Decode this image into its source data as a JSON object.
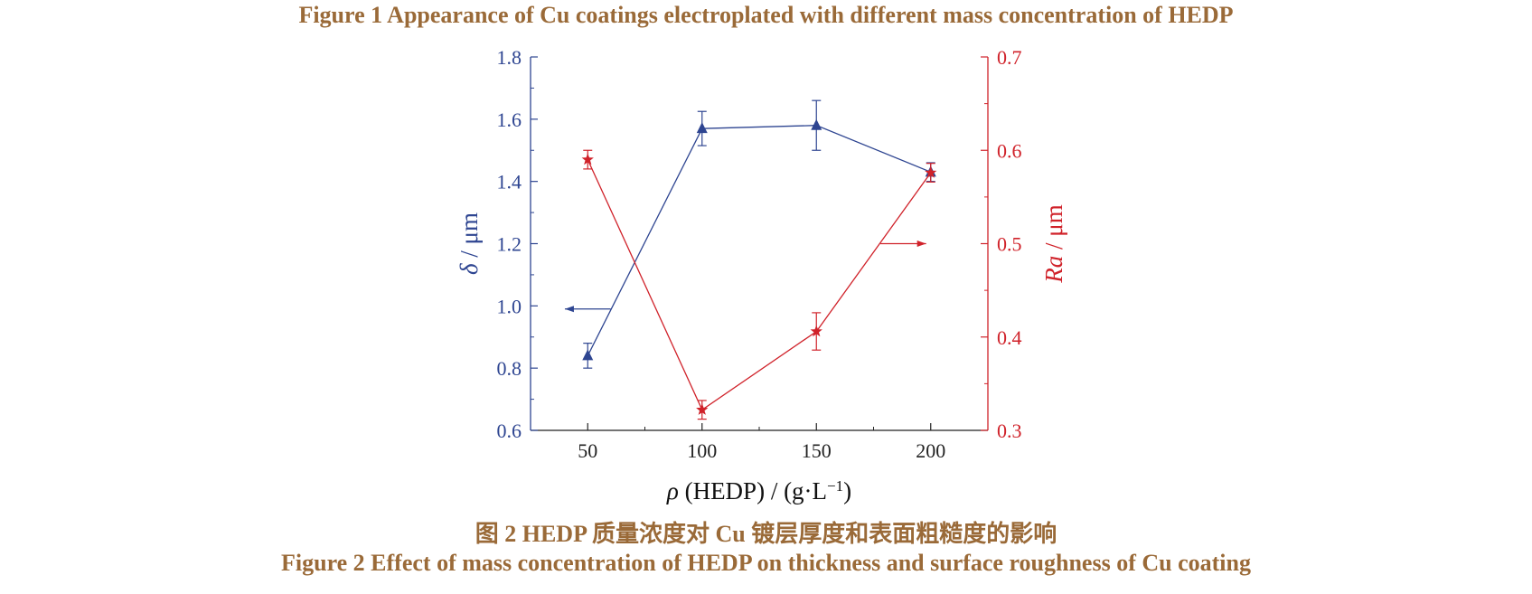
{
  "captions": {
    "fig1": "Figure 1    Appearance of Cu coatings electroplated with different mass concentration of HEDP",
    "cn": "图 2    HEDP 质量浓度对 Cu 镀层厚度和表面粗糙度的影响",
    "fig2": "Figure 2    Effect of mass concentration of HEDP on thickness and surface roughness of Cu coating"
  },
  "colors": {
    "left": "#2e4591",
    "right": "#d0222a",
    "axis": "#222222"
  },
  "chart_data": {
    "type": "line",
    "x": [
      50,
      100,
      150,
      200
    ],
    "xticks": [
      50,
      100,
      150,
      200
    ],
    "xlim": [
      25,
      225
    ],
    "xlabel": {
      "symbol": "ρ",
      "text": " (HEDP) / (g·L",
      "sup": "−1",
      "close": ")"
    },
    "y_left": {
      "label_symbol": "δ",
      "label_rest": " / μm",
      "lim": [
        0.6,
        1.8
      ],
      "ticks": [
        "0.6",
        "0.8",
        "1.0",
        "1.2",
        "1.4",
        "1.6",
        "1.8"
      ]
    },
    "y_right": {
      "label_symbol": "Ra",
      "label_rest": " / μm",
      "lim": [
        0.3,
        0.7
      ],
      "ticks": [
        "0.3",
        "0.4",
        "0.5",
        "0.6",
        "0.7"
      ]
    },
    "series": [
      {
        "axis": "left",
        "marker": "triangle",
        "color": "#2e4591",
        "values": [
          0.84,
          1.57,
          1.58,
          1.43
        ],
        "errors": [
          0.04,
          0.055,
          0.08,
          0.03
        ]
      },
      {
        "axis": "right",
        "marker": "star",
        "color": "#d0222a",
        "values": [
          0.59,
          0.322,
          0.406,
          0.576
        ],
        "errors": [
          0.01,
          0.01,
          0.02,
          0.01
        ]
      }
    ],
    "indicators": [
      {
        "axis": "left",
        "points_to": "left",
        "x_from": 60,
        "x_to": 40,
        "y": 0.99
      },
      {
        "axis": "right",
        "points_to": "right",
        "x_from": 178,
        "x_to": 198,
        "y": 0.5
      }
    ],
    "grid": false,
    "legend": "none"
  }
}
